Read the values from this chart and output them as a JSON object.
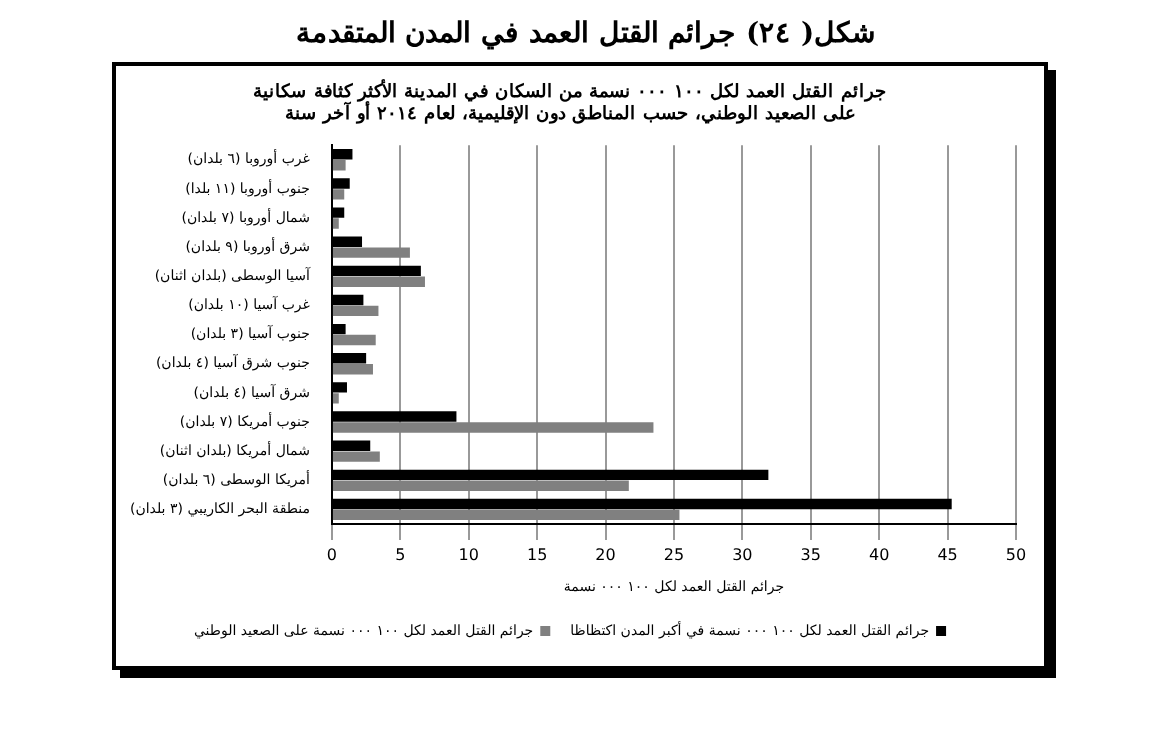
{
  "chart_data": {
    "type": "bar",
    "orientation": "horizontal",
    "title": [
      "جرائم القتل العمد لكل ١٠٠ ٠٠٠ نسمة من السكان في المدينة الأكثر كثافة سكانية",
      "على الصعيد الوطني، حسب المناطق دون الإقليمية، لعام ٢٠١٤ أو آخر سنة"
    ],
    "subtitle": "شكل( ٢٤) جرائم القتل العمد في المدن المتقدمة",
    "xlabel": "جرائم القتل العمد لكل ١٠٠ ٠٠٠ نسمة",
    "categories": [
      "غرب أوروبا (٦ بلدان)",
      "جنوب أوروبا (١١ بلدا)",
      "شمال أوروبا (٧ بلدان)",
      "شرق أوروبا (٩ بلدان)",
      "آسيا الوسطى (بلدان اثنان)",
      "غرب آسيا (١٠ بلدان)",
      "جنوب آسيا (٣ بلدان)",
      "جنوب شرق آسيا (٤ بلدان)",
      "شرق آسيا (٤ بلدان)",
      "جنوب أمريكا (٧ بلدان)",
      "شمال أمريكا (بلدان اثنان)",
      "أمريكا الوسطى (٦ بلدان)",
      "منطقة البحر الكاريبي (٣ بلدان)"
    ],
    "series": [
      {
        "name": "جرائم القتل العمد لكل ١٠٠ ٠٠٠ نسمة في أكبر المدن اكتظاظا",
        "color": "#000000",
        "values": [
          1.5,
          1.3,
          0.9,
          2.2,
          6.5,
          2.3,
          1.0,
          2.5,
          1.1,
          9.1,
          2.8,
          31.9,
          45.3
        ]
      },
      {
        "name": "جرائم القتل العمد لكل ١٠٠ ٠٠٠ نسمة على الصعيد الوطني",
        "color": "#808080",
        "values": [
          1.0,
          0.9,
          0.5,
          5.7,
          6.8,
          3.4,
          3.2,
          3.0,
          0.5,
          23.5,
          3.5,
          21.7,
          25.4
        ]
      }
    ],
    "xlim": [
      0,
      50
    ],
    "xticks": [
      0,
      5,
      10,
      15,
      20,
      25,
      30,
      35,
      40,
      45,
      50
    ],
    "grid": "x",
    "legend": "bottom"
  }
}
